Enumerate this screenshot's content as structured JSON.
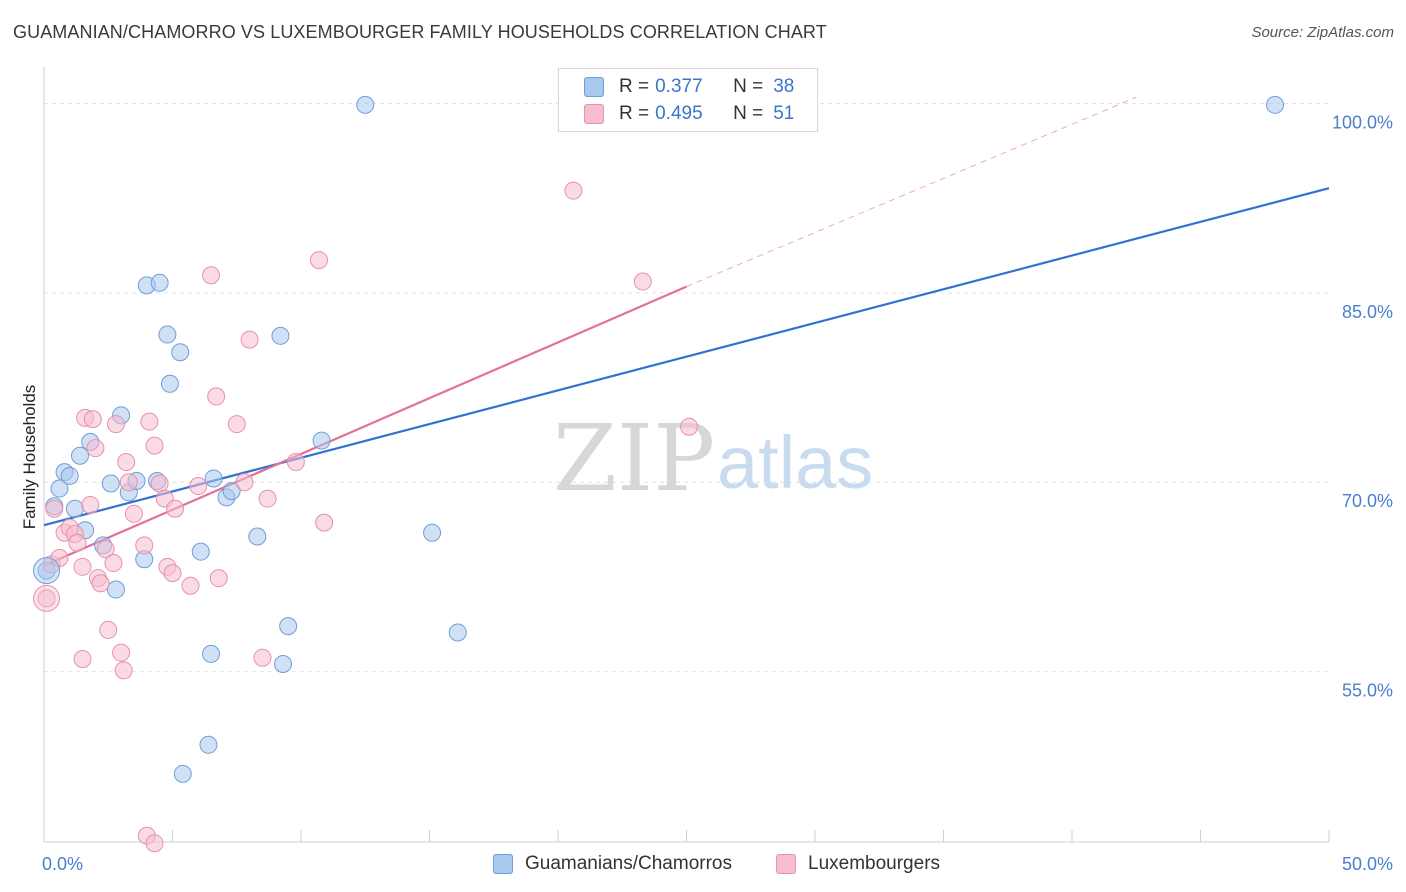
{
  "title": "GUAMANIAN/CHAMORRO VS LUXEMBOURGER FAMILY HOUSEHOLDS CORRELATION CHART",
  "source": "Source: ZipAtlas.com",
  "watermark": {
    "zip": "ZIP",
    "atlas": "atlas"
  },
  "legend": {
    "rows": [
      {
        "r_label": "R =",
        "r_value": "0.377",
        "n_label": "N =",
        "n_value": "38",
        "color": "#a9c8ee",
        "border": "#6e9ed8"
      },
      {
        "r_label": "R =",
        "r_value": "0.495",
        "n_label": "N =",
        "n_value": "51",
        "color": "#f6bdd0",
        "border": "#e890ae"
      }
    ]
  },
  "bottom_legend": [
    {
      "label": "Guamanians/Chamorros",
      "color": "#a9c8ee",
      "border": "#6e9ed8"
    },
    {
      "label": "Luxembourgers",
      "color": "#f6bdd0",
      "border": "#e890ae"
    }
  ],
  "chart_data": {
    "type": "scatter",
    "title": "GUAMANIAN/CHAMORRO VS LUXEMBOURGER FAMILY HOUSEHOLDS CORRELATION CHART",
    "xlabel": "",
    "ylabel": "Family Households",
    "xlim": [
      0,
      50
    ],
    "ylim": [
      41.5,
      102.5
    ],
    "x_tick_labels": [
      {
        "value": 0,
        "label": "0.0%"
      },
      {
        "value": 50,
        "label": "50.0%"
      }
    ],
    "y_tick_labels": [
      {
        "value": 100,
        "label": "100.0%"
      },
      {
        "value": 85,
        "label": "85.0%"
      },
      {
        "value": 70,
        "label": "70.0%"
      },
      {
        "value": 55,
        "label": "55.0%"
      }
    ],
    "y_gridlines": [
      100,
      85,
      70,
      55
    ],
    "series": [
      {
        "name": "Guamanians/Chamorros",
        "color": "#a9c8ee",
        "edge": "#6e9ed8",
        "line_color": "#2f72cf",
        "trend": {
          "x0": 0,
          "y0": 66.6,
          "x1": 50,
          "y1": 93.3
        },
        "points": [
          [
            0.1,
            63.0
          ],
          [
            0.4,
            68.1
          ],
          [
            0.6,
            69.5
          ],
          [
            0.8,
            70.8
          ],
          [
            1.0,
            70.5
          ],
          [
            1.2,
            67.9
          ],
          [
            1.4,
            72.1
          ],
          [
            1.6,
            66.2
          ],
          [
            1.8,
            73.2
          ],
          [
            2.3,
            65.0
          ],
          [
            2.6,
            69.9
          ],
          [
            2.8,
            61.5
          ],
          [
            3.0,
            75.3
          ],
          [
            3.3,
            69.2
          ],
          [
            3.6,
            70.1
          ],
          [
            3.9,
            63.9
          ],
          [
            4.0,
            85.6
          ],
          [
            4.4,
            70.1
          ],
          [
            4.5,
            85.8
          ],
          [
            4.8,
            81.7
          ],
          [
            4.9,
            77.8
          ],
          [
            5.3,
            80.3
          ],
          [
            6.1,
            64.5
          ],
          [
            6.5,
            56.4
          ],
          [
            6.6,
            70.3
          ],
          [
            7.1,
            68.8
          ],
          [
            7.3,
            69.3
          ],
          [
            8.3,
            65.7
          ],
          [
            9.2,
            81.6
          ],
          [
            9.3,
            55.6
          ],
          [
            9.5,
            58.6
          ],
          [
            10.8,
            73.3
          ],
          [
            12.5,
            99.9
          ],
          [
            15.1,
            66.0
          ],
          [
            16.1,
            58.1
          ],
          [
            47.9,
            99.9
          ],
          [
            6.4,
            49.2
          ],
          [
            5.4,
            46.9
          ]
        ]
      },
      {
        "name": "Luxembourgers",
        "color": "#f6bdd0",
        "edge": "#e890ae",
        "line_color": "#e2709a",
        "trend": {
          "x0": 0,
          "y0": 63.4,
          "x1": 25,
          "y1": 85.5
        },
        "trend_dashed": {
          "x0": 25,
          "y0": 85.5,
          "x1": 42.5,
          "y1": 100.5
        },
        "points": [
          [
            0.1,
            60.8
          ],
          [
            0.3,
            63.5
          ],
          [
            0.4,
            67.9
          ],
          [
            0.6,
            64.0
          ],
          [
            0.8,
            66.0
          ],
          [
            1.0,
            66.4
          ],
          [
            1.2,
            65.9
          ],
          [
            1.3,
            65.2
          ],
          [
            1.5,
            63.3
          ],
          [
            1.5,
            56.0
          ],
          [
            1.6,
            75.1
          ],
          [
            1.8,
            68.2
          ],
          [
            1.9,
            75.0
          ],
          [
            2.0,
            72.7
          ],
          [
            2.1,
            62.4
          ],
          [
            2.2,
            62.0
          ],
          [
            2.4,
            64.7
          ],
          [
            2.5,
            58.3
          ],
          [
            2.7,
            63.6
          ],
          [
            2.8,
            74.6
          ],
          [
            3.0,
            56.5
          ],
          [
            3.2,
            71.6
          ],
          [
            3.3,
            70.0
          ],
          [
            3.5,
            67.5
          ],
          [
            3.9,
            65.0
          ],
          [
            4.0,
            42.0
          ],
          [
            4.1,
            74.8
          ],
          [
            4.3,
            72.9
          ],
          [
            4.3,
            41.4
          ],
          [
            4.5,
            69.9
          ],
          [
            4.7,
            68.7
          ],
          [
            4.8,
            63.3
          ],
          [
            5.0,
            62.8
          ],
          [
            5.1,
            67.9
          ],
          [
            5.7,
            61.8
          ],
          [
            6.0,
            69.7
          ],
          [
            6.5,
            86.4
          ],
          [
            6.7,
            76.8
          ],
          [
            6.8,
            62.4
          ],
          [
            7.5,
            74.6
          ],
          [
            7.8,
            70.0
          ],
          [
            8.0,
            81.3
          ],
          [
            8.5,
            56.1
          ],
          [
            8.7,
            68.7
          ],
          [
            9.8,
            71.6
          ],
          [
            10.7,
            87.6
          ],
          [
            10.9,
            66.8
          ],
          [
            20.6,
            93.1
          ],
          [
            23.3,
            85.9
          ],
          [
            25.1,
            74.4
          ],
          [
            3.1,
            55.1
          ]
        ]
      }
    ]
  }
}
